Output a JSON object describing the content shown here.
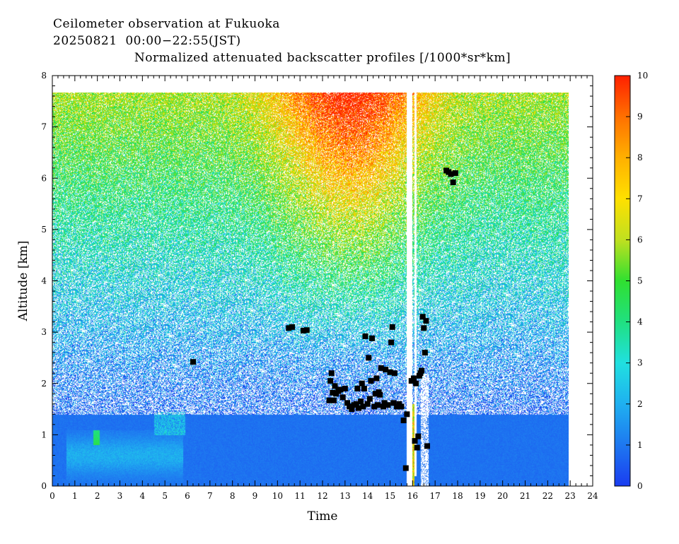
{
  "chart_data": {
    "type": "heatmap",
    "title": "Ceilometer observation at Fukuoka",
    "subtitle": "20250821  00:00−22:55(JST)",
    "variable_title": "Normalized attenuated backscatter profiles [/1000*sr*km]",
    "xlabel": "Time",
    "ylabel": "Altitude [km]",
    "xlim": [
      0,
      24
    ],
    "ylim": [
      0,
      8
    ],
    "x_ticks": [
      "0",
      "1",
      "2",
      "3",
      "4",
      "5",
      "6",
      "7",
      "8",
      "9",
      "10",
      "11",
      "12",
      "13",
      "14",
      "15",
      "16",
      "17",
      "18",
      "19",
      "20",
      "21",
      "22",
      "23",
      "24"
    ],
    "y_ticks": [
      "0",
      "1",
      "2",
      "3",
      "4",
      "5",
      "6",
      "7",
      "8"
    ],
    "data_range": {
      "time_hours": [
        0,
        22.92
      ],
      "altitude_km": [
        0,
        7.67
      ]
    },
    "colorbar": {
      "range": [
        0,
        10
      ],
      "ticks": [
        "0",
        "1",
        "2",
        "3",
        "4",
        "5",
        "6",
        "7",
        "8",
        "9",
        "10"
      ],
      "colors": [
        "#1a3cf0",
        "#1e78f0",
        "#1fb0f0",
        "#20e0e0",
        "#20e080",
        "#30e030",
        "#c0e020",
        "#ffe000",
        "#ffb000",
        "#ff7000",
        "#ff2000"
      ]
    },
    "cloud_base_points": [
      {
        "t": 6.25,
        "z": 2.42
      },
      {
        "t": 10.5,
        "z": 3.08
      },
      {
        "t": 10.65,
        "z": 3.1
      },
      {
        "t": 11.15,
        "z": 3.03
      },
      {
        "t": 11.3,
        "z": 3.04
      },
      {
        "t": 12.3,
        "z": 1.67
      },
      {
        "t": 12.35,
        "z": 2.05
      },
      {
        "t": 12.4,
        "z": 2.2
      },
      {
        "t": 12.45,
        "z": 1.82
      },
      {
        "t": 12.5,
        "z": 1.67
      },
      {
        "t": 12.55,
        "z": 1.95
      },
      {
        "t": 12.6,
        "z": 1.8
      },
      {
        "t": 12.7,
        "z": 1.85
      },
      {
        "t": 12.8,
        "z": 1.88
      },
      {
        "t": 12.9,
        "z": 1.73
      },
      {
        "t": 13.0,
        "z": 1.9
      },
      {
        "t": 13.1,
        "z": 1.62
      },
      {
        "t": 13.2,
        "z": 1.55
      },
      {
        "t": 13.3,
        "z": 1.5
      },
      {
        "t": 13.4,
        "z": 1.58
      },
      {
        "t": 13.5,
        "z": 1.6
      },
      {
        "t": 13.55,
        "z": 1.9
      },
      {
        "t": 13.6,
        "z": 1.52
      },
      {
        "t": 13.7,
        "z": 1.65
      },
      {
        "t": 13.75,
        "z": 2.0
      },
      {
        "t": 13.8,
        "z": 1.55
      },
      {
        "t": 13.85,
        "z": 1.9
      },
      {
        "t": 13.9,
        "z": 2.92
      },
      {
        "t": 14.0,
        "z": 1.6
      },
      {
        "t": 14.05,
        "z": 2.5
      },
      {
        "t": 14.1,
        "z": 1.7
      },
      {
        "t": 14.15,
        "z": 2.05
      },
      {
        "t": 14.2,
        "z": 2.88
      },
      {
        "t": 14.3,
        "z": 1.55
      },
      {
        "t": 14.35,
        "z": 1.8
      },
      {
        "t": 14.4,
        "z": 2.1
      },
      {
        "t": 14.45,
        "z": 1.58
      },
      {
        "t": 14.5,
        "z": 1.83
      },
      {
        "t": 14.55,
        "z": 1.78
      },
      {
        "t": 14.6,
        "z": 2.3
      },
      {
        "t": 14.7,
        "z": 1.55
      },
      {
        "t": 14.75,
        "z": 1.62
      },
      {
        "t": 14.8,
        "z": 2.27
      },
      {
        "t": 14.9,
        "z": 1.58
      },
      {
        "t": 15.0,
        "z": 2.22
      },
      {
        "t": 15.05,
        "z": 2.8
      },
      {
        "t": 15.1,
        "z": 3.1
      },
      {
        "t": 15.15,
        "z": 1.62
      },
      {
        "t": 15.2,
        "z": 2.2
      },
      {
        "t": 15.3,
        "z": 1.55
      },
      {
        "t": 15.4,
        "z": 1.6
      },
      {
        "t": 15.5,
        "z": 1.55
      },
      {
        "t": 15.6,
        "z": 1.28
      },
      {
        "t": 15.75,
        "z": 1.4
      },
      {
        "t": 15.7,
        "z": 0.35
      },
      {
        "t": 15.95,
        "z": 2.05
      },
      {
        "t": 16.05,
        "z": 2.1
      },
      {
        "t": 16.1,
        "z": 0.88
      },
      {
        "t": 16.15,
        "z": 2.0
      },
      {
        "t": 16.2,
        "z": 0.75
      },
      {
        "t": 16.25,
        "z": 0.97
      },
      {
        "t": 16.3,
        "z": 2.15
      },
      {
        "t": 16.35,
        "z": 2.2
      },
      {
        "t": 16.4,
        "z": 2.25
      },
      {
        "t": 16.45,
        "z": 3.3
      },
      {
        "t": 16.5,
        "z": 3.08
      },
      {
        "t": 16.55,
        "z": 2.6
      },
      {
        "t": 16.6,
        "z": 3.22
      },
      {
        "t": 16.65,
        "z": 0.78
      },
      {
        "t": 17.5,
        "z": 6.15
      },
      {
        "t": 17.6,
        "z": 6.12
      },
      {
        "t": 17.7,
        "z": 6.08
      },
      {
        "t": 17.8,
        "z": 5.92
      },
      {
        "t": 17.9,
        "z": 6.1
      }
    ]
  }
}
